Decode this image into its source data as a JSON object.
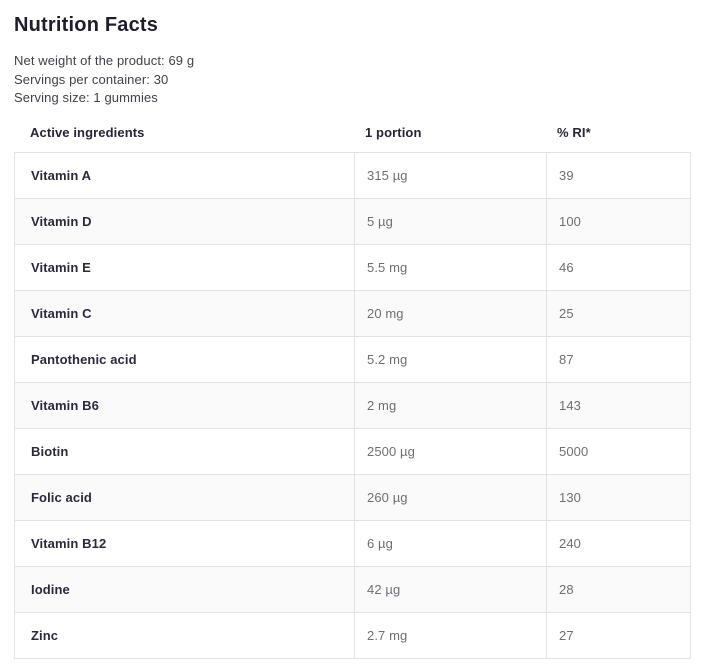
{
  "page": {
    "title": "Nutrition Facts",
    "meta": [
      "Net weight of the product: 69 g",
      "Servings per container: 30",
      "Serving size: 1 gummies"
    ]
  },
  "table": {
    "headers": [
      "Active ingredients",
      "1 portion",
      "% RI*"
    ],
    "rows": [
      {
        "name": "Vitamin A",
        "portion": "315 µg",
        "ri": "39"
      },
      {
        "name": "Vitamin D",
        "portion": "5 µg",
        "ri": "100"
      },
      {
        "name": "Vitamin E",
        "portion": "5.5 mg",
        "ri": "46"
      },
      {
        "name": "Vitamin C",
        "portion": "20 mg",
        "ri": "25"
      },
      {
        "name": "Pantothenic acid",
        "portion": "5.2 mg",
        "ri": "87"
      },
      {
        "name": "Vitamin B6",
        "portion": "2 mg",
        "ri": "143"
      },
      {
        "name": "Biotin",
        "portion": "2500 µg",
        "ri": "5000"
      },
      {
        "name": "Folic acid",
        "portion": "260 µg",
        "ri": "130"
      },
      {
        "name": "Vitamin B12",
        "portion": "6 µg",
        "ri": "240"
      },
      {
        "name": "Iodine",
        "portion": "42 µg",
        "ri": "28"
      },
      {
        "name": "Zinc",
        "portion": "2.7 mg",
        "ri": "27"
      }
    ],
    "colors": {
      "heading_text": "#1d1d2b",
      "label_text": "#2a2a3c",
      "value_text": "#6e6e76",
      "border": "#e3e3e3",
      "row_stripe": "#fafafa"
    }
  }
}
